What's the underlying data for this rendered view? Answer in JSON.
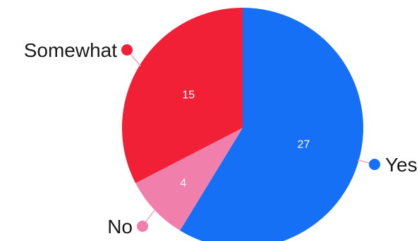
{
  "chart_data": {
    "type": "pie",
    "title": "",
    "start_angle_deg": 0,
    "direction": "clockwise",
    "slices": [
      {
        "label": "Yes",
        "value": 27,
        "color": "#1570f6"
      },
      {
        "label": "No",
        "value": 4,
        "color": "#f17fac"
      },
      {
        "label": "Somewhat",
        "value": 15,
        "color": "#f12036"
      }
    ],
    "leader_line_color": "#f4a7b5",
    "legend": "outside-labels-with-dots"
  }
}
